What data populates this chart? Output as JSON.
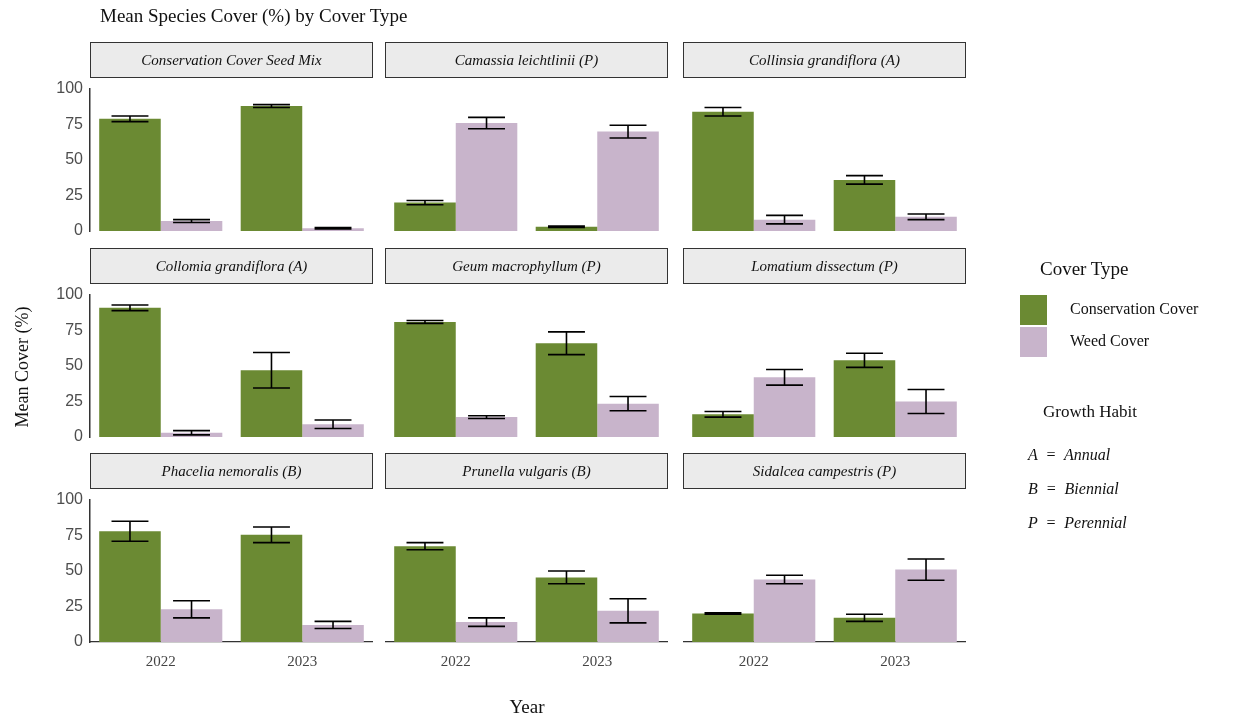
{
  "chart_data": [
    {
      "type": "bar",
      "title": "Mean Species Cover (%) by Cover Type",
      "subtitle": "Conservation Cover Seed Mix",
      "categories": [
        "2022",
        "2023"
      ],
      "series": [
        {
          "color": "#6b8a33",
          "values": [
            79,
            88
          ],
          "errors": [
            2,
            1
          ]
        },
        {
          "color": "#c8b4cb",
          "values": [
            7,
            2
          ],
          "errors": [
            1,
            0.5
          ]
        }
      ],
      "ylim": [
        0,
        100
      ],
      "yticks": [
        0,
        25,
        50,
        75,
        100
      ],
      "tick_labels": "y"
    },
    {
      "type": "bar",
      "subtitle": "Camassia leichtlinii (P)",
      "categories": [
        "2022",
        "2023"
      ],
      "series": [
        {
          "color": "#6b8a33",
          "values": [
            20,
            3
          ],
          "errors": [
            1.5,
            0.5
          ]
        },
        {
          "color": "#c8b4cb",
          "values": [
            76,
            70
          ],
          "errors": [
            4,
            4.5
          ]
        }
      ],
      "ylim": [
        0,
        100
      ],
      "yticks": [
        0,
        25,
        50,
        75,
        100
      ],
      "tick_labels": false
    },
    {
      "type": "bar",
      "subtitle": "Collinsia grandiflora (A)",
      "categories": [
        "2022",
        "2023"
      ],
      "series": [
        {
          "color": "#6b8a33",
          "values": [
            84,
            36
          ],
          "errors": [
            3,
            3
          ]
        },
        {
          "color": "#c8b4cb",
          "values": [
            8,
            10
          ],
          "errors": [
            3,
            2
          ]
        }
      ],
      "ylim": [
        0,
        100
      ],
      "yticks": [
        0,
        25,
        50,
        75,
        100
      ],
      "tick_labels": false
    },
    {
      "type": "bar",
      "subtitle": "Collomia grandiflora (A)",
      "ylabel": "Mean Cover (%)",
      "categories": [
        "2022",
        "2023"
      ],
      "series": [
        {
          "color": "#6b8a33",
          "values": [
            91,
            47
          ],
          "errors": [
            2,
            12.5
          ]
        },
        {
          "color": "#c8b4cb",
          "values": [
            3,
            9
          ],
          "errors": [
            1.5,
            3
          ]
        }
      ],
      "ylim": [
        0,
        100
      ],
      "yticks": [
        0,
        25,
        50,
        75,
        100
      ],
      "tick_labels": "y"
    },
    {
      "type": "bar",
      "subtitle": "Geum macrophyllum (P)",
      "categories": [
        "2022",
        "2023"
      ],
      "series": [
        {
          "color": "#6b8a33",
          "values": [
            81,
            66
          ],
          "errors": [
            1,
            8
          ]
        },
        {
          "color": "#c8b4cb",
          "values": [
            14,
            23.5
          ],
          "errors": [
            1,
            5
          ]
        }
      ],
      "ylim": [
        0,
        100
      ],
      "yticks": [
        0,
        25,
        50,
        75,
        100
      ],
      "tick_labels": false
    },
    {
      "type": "bar",
      "subtitle": "Lomatium dissectum (P)",
      "legend_title": "Cover Type",
      "legend": "right",
      "annotations": [
        "Growth Habit",
        "A  =  Annual",
        "B  =  Biennial",
        "P  =  Perennial"
      ],
      "categories": [
        "2022",
        "2023"
      ],
      "series": [
        {
          "name": "Conservation Cover",
          "color": "#6b8a33",
          "values": [
            16,
            54
          ],
          "errors": [
            2,
            5
          ]
        },
        {
          "name": "Weed Cover",
          "color": "#c8b4cb",
          "values": [
            42,
            25
          ],
          "errors": [
            5.5,
            8.5
          ]
        }
      ],
      "ylim": [
        0,
        100
      ],
      "yticks": [
        0,
        25,
        50,
        75,
        100
      ],
      "tick_labels": false
    },
    {
      "type": "bar",
      "subtitle": "Phacelia nemoralis (B)",
      "categories": [
        "2022",
        "2023"
      ],
      "series": [
        {
          "color": "#6b8a33",
          "values": [
            78,
            75.5
          ],
          "errors": [
            7,
            5.5
          ]
        },
        {
          "color": "#c8b4cb",
          "values": [
            23,
            12
          ],
          "errors": [
            6,
            2.5
          ]
        }
      ],
      "ylim": [
        0,
        100
      ],
      "yticks": [
        0,
        25,
        50,
        75,
        100
      ]
    },
    {
      "type": "bar",
      "subtitle": "Prunella vulgaris (B)",
      "xlabel": "Year",
      "categories": [
        "2022",
        "2023"
      ],
      "series": [
        {
          "color": "#6b8a33",
          "values": [
            67.5,
            45.5
          ],
          "errors": [
            2.5,
            4.5
          ]
        },
        {
          "color": "#c8b4cb",
          "values": [
            14,
            22
          ],
          "errors": [
            3,
            8.5
          ]
        }
      ],
      "ylim": [
        0,
        100
      ],
      "yticks": [
        0,
        25,
        50,
        75,
        100
      ],
      "tick_labels": "x"
    },
    {
      "type": "bar",
      "subtitle": "Sidalcea campestris (P)",
      "categories": [
        "2022",
        "2023"
      ],
      "series": [
        {
          "color": "#6b8a33",
          "values": [
            20,
            17
          ],
          "errors": [
            0.5,
            2.5
          ]
        },
        {
          "color": "#c8b4cb",
          "values": [
            44,
            51
          ],
          "errors": [
            3,
            7.5
          ]
        }
      ],
      "ylim": [
        0,
        100
      ],
      "yticks": [
        0,
        25,
        50,
        75,
        100
      ],
      "tick_labels": "x"
    }
  ]
}
